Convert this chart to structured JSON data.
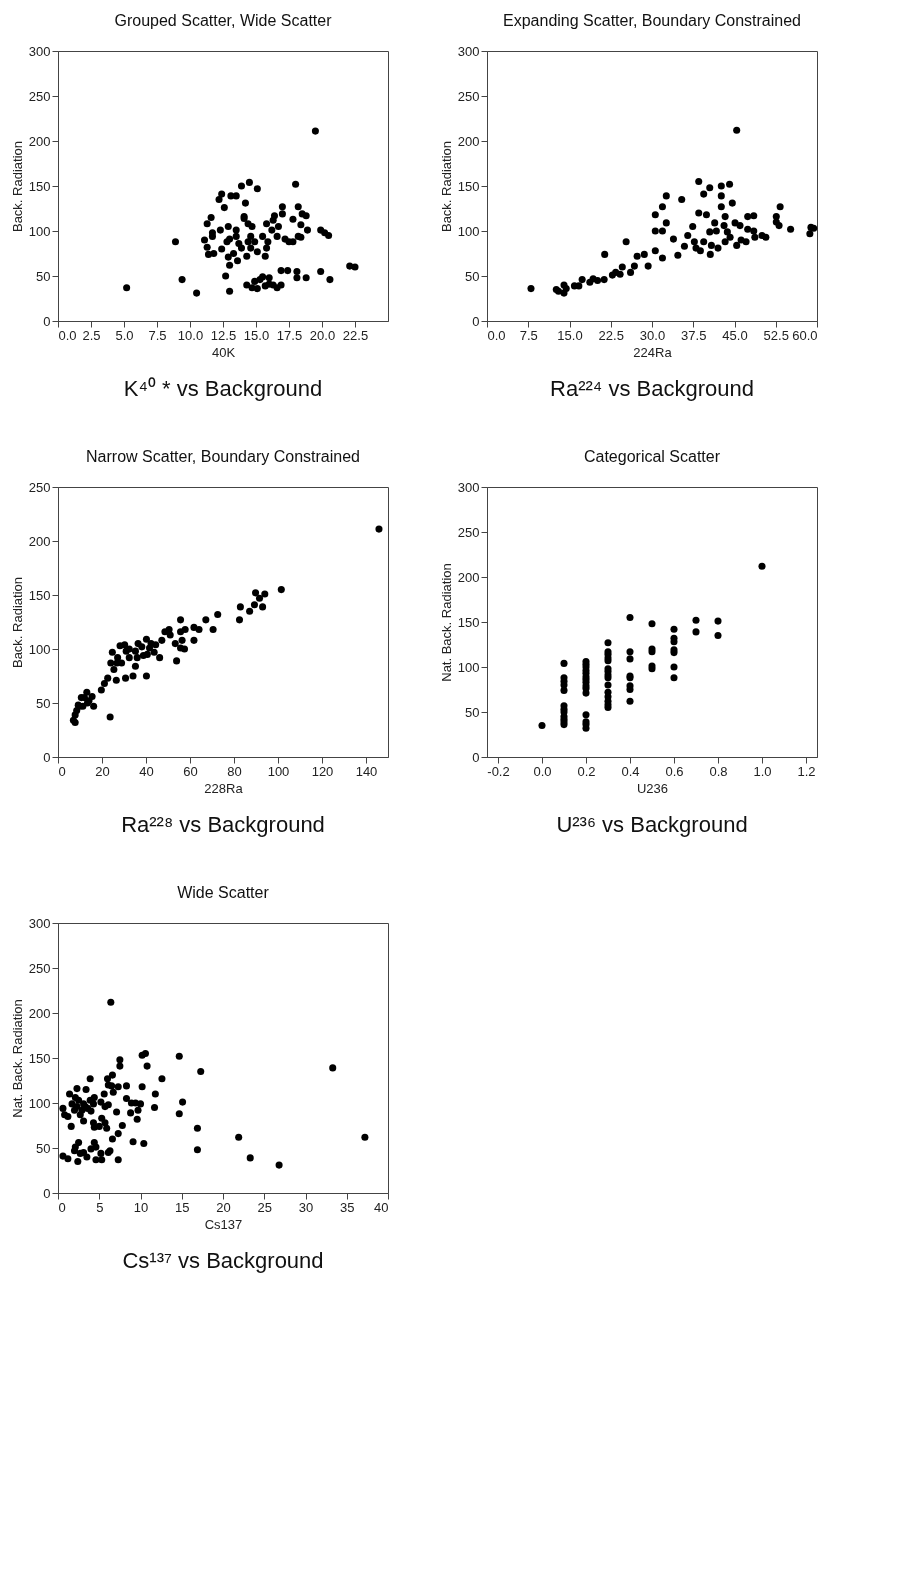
{
  "chart_data": [
    {
      "type": "scatter",
      "title": "Grouped Scatter, Wide Scatter",
      "xlabel": "40K",
      "ylabel": "Back. Radiation",
      "annotations": [
        "K⁴⁰ * vs Background"
      ],
      "color": "#000000",
      "marker": "circle",
      "xlim": [
        0,
        25
      ],
      "xticks": [
        {
          "value": 0,
          "label": "0.0"
        },
        {
          "value": 2.5,
          "label": "2.5"
        },
        {
          "value": 5,
          "label": "5.0"
        },
        {
          "value": 7.5,
          "label": "7.5"
        },
        {
          "value": 10,
          "label": "10.0"
        },
        {
          "value": 12.5,
          "label": "12.5"
        },
        {
          "value": 15,
          "label": "15.0"
        },
        {
          "value": 17.5,
          "label": "17.5"
        },
        {
          "value": 20,
          "label": "20.0"
        },
        {
          "value": 22.5,
          "label": "22.5"
        }
      ],
      "ylim": [
        0,
        300
      ],
      "yticks": [
        0,
        50,
        100,
        150,
        200,
        250,
        300
      ],
      "x": [
        5.2,
        8.9,
        9.4,
        10.5,
        19.5,
        22.1,
        22.5,
        19.9,
        20.6,
        18.8,
        18.1,
        18.1,
        17.4,
        16.9,
        13.0,
        12.7,
        13.0,
        12.9,
        13.6,
        13.3,
        12.4,
        11.4,
        11.8,
        11.1,
        11.3,
        11.7,
        11.7,
        11.3,
        11.6,
        12.3,
        12.2,
        12.4,
        12.6,
        13.1,
        13.5,
        13.9,
        14.5,
        15.1,
        14.2,
        14.1,
        14.1,
        14.4,
        14.7,
        12.9,
        13.5,
        13.0,
        13.5,
        12.8,
        13.7,
        13.9,
        14.3,
        14.4,
        14.6,
        14.9,
        14.6,
        15.1,
        15.5,
        15.8,
        15.7,
        15.9,
        15.8,
        16.2,
        16.3,
        16.4,
        16.7,
        16.6,
        17.0,
        17.0,
        17.2,
        17.5,
        17.8,
        17.8,
        18.0,
        18.2,
        18.4,
        18.2,
        18.4,
        18.5,
        18.8,
        18.9,
        19.9,
        20.2,
        20.5,
        14.3,
        14.7,
        14.9,
        15.1,
        15.3,
        15.5,
        15.7,
        16.0,
        16.0,
        16.3,
        16.6,
        16.9
      ],
      "values": [
        37,
        88,
        46,
        31,
        211,
        61,
        60,
        55,
        46,
        48,
        48,
        55,
        56,
        56,
        33,
        50,
        62,
        71,
        67,
        75,
        80,
        74,
        75,
        90,
        82,
        94,
        98,
        108,
        115,
        101,
        135,
        141,
        126,
        139,
        139,
        150,
        154,
        147,
        131,
        116,
        114,
        108,
        105,
        105,
        101,
        91,
        94,
        88,
        86,
        81,
        72,
        88,
        94,
        88,
        81,
        77,
        94,
        81,
        72,
        88,
        108,
        101,
        112,
        117,
        105,
        94,
        127,
        119,
        91,
        88,
        88,
        113,
        152,
        127,
        107,
        94,
        93,
        119,
        117,
        101,
        101,
        98,
        95,
        40,
        37,
        44,
        36,
        46,
        49,
        39,
        48,
        41,
        40,
        37,
        40
      ]
    },
    {
      "type": "scatter",
      "title": "Expanding Scatter, Boundary Constrained",
      "xlabel": "224Ra",
      "ylabel": "Back. Radiation",
      "annotations": [
        "Ra²²⁴ vs Background"
      ],
      "color": "#000000",
      "marker": "circle",
      "xlim": [
        0,
        60
      ],
      "xticks": [
        {
          "value": 0,
          "label": "0.0"
        },
        {
          "value": 7.5,
          "label": "7.5"
        },
        {
          "value": 15,
          "label": "15.0"
        },
        {
          "value": 22.5,
          "label": "22.5"
        },
        {
          "value": 30,
          "label": "30.0"
        },
        {
          "value": 37.5,
          "label": "37.5"
        },
        {
          "value": 45,
          "label": "45.0"
        },
        {
          "value": 52.5,
          "label": "52.5"
        },
        {
          "value": 60,
          "label": "60.0"
        }
      ],
      "ylim": [
        0,
        300
      ],
      "yticks": [
        0,
        50,
        100,
        150,
        200,
        250,
        300
      ],
      "x": [
        8.0,
        12.6,
        13.0,
        14.0,
        14.4,
        14.0,
        15.9,
        16.7,
        17.3,
        18.7,
        19.3,
        20.1,
        21.3,
        21.4,
        22.8,
        23.4,
        24.2,
        24.6,
        25.3,
        26.1,
        26.8,
        27.3,
        28.6,
        29.3,
        30.6,
        30.6,
        30.6,
        31.9,
        31.9,
        31.9,
        32.6,
        32.6,
        33.9,
        34.7,
        35.4,
        35.9,
        36.5,
        37.4,
        37.7,
        38.0,
        38.5,
        38.5,
        38.8,
        39.4,
        39.4,
        39.9,
        40.5,
        40.5,
        40.6,
        40.8,
        41.4,
        41.7,
        42.0,
        42.6,
        42.6,
        42.6,
        43.1,
        43.3,
        43.3,
        44.1,
        44.6,
        43.7,
        44.2,
        45.4,
        45.1,
        45.4,
        46.0,
        46.2,
        47.1,
        47.4,
        47.4,
        48.5,
        48.5,
        48.7,
        50.0,
        50.7,
        52.6,
        52.6,
        53.1,
        53.3,
        55.2,
        58.7,
        58.9,
        59.4
      ],
      "values": [
        36,
        35,
        33,
        31,
        36,
        40,
        39,
        39,
        46,
        43,
        47,
        45,
        46,
        74,
        51,
        54,
        52,
        60,
        88,
        54,
        61,
        72,
        74,
        61,
        118,
        100,
        78,
        127,
        100,
        70,
        139,
        109,
        91,
        73,
        135,
        83,
        95,
        105,
        88,
        81,
        155,
        120,
        78,
        141,
        88,
        118,
        148,
        99,
        74,
        84,
        109,
        100,
        81,
        150,
        139,
        127,
        106,
        88,
        116,
        152,
        131,
        99,
        93,
        212,
        109,
        84,
        106,
        90,
        88,
        116,
        102,
        117,
        100,
        93,
        95,
        93,
        116,
        110,
        106,
        127,
        102,
        97,
        104,
        103
      ]
    },
    {
      "type": "scatter",
      "title": "Narrow Scatter, Boundary Constrained",
      "xlabel": "228Ra",
      "ylabel": "Back. Radiation",
      "annotations": [
        "Ra²²⁸ vs Background"
      ],
      "color": "#000000",
      "marker": "circle",
      "xlim": [
        0,
        150
      ],
      "xticks": [
        0,
        20,
        40,
        60,
        80,
        100,
        120,
        140
      ],
      "ylim": [
        0,
        250
      ],
      "yticks": [
        0,
        50,
        100,
        150,
        200,
        250
      ],
      "x": [
        145.9,
        101.5,
        89.8,
        94.0,
        91.6,
        89.3,
        93.0,
        82.9,
        87.1,
        82.5,
        72.6,
        67.2,
        70.5,
        61.8,
        64.1,
        61.8,
        55.7,
        57.8,
        55.7,
        56.4,
        55.7,
        57.5,
        53.3,
        53.9,
        50.5,
        48.6,
        51.0,
        47.2,
        46.2,
        44.4,
        42.3,
        41.6,
        40.2,
        40.6,
        40.2,
        38.1,
        36.4,
        36.0,
        35.2,
        34.1,
        32.4,
        31.0,
        30.3,
        28.2,
        27.1,
        26.8,
        28.9,
        30.7,
        26.5,
        24.7,
        25.4,
        24.0,
        22.6,
        21.1,
        19.7,
        23.7,
        16.2,
        15.5,
        14.1,
        13.1,
        12.0,
        10.6,
        9.9,
        9.2,
        8.5,
        7.8,
        7.0,
        7.8,
        11.3,
        13.4,
        32.4,
        38.8,
        43.7,
        35.2
      ],
      "values": [
        211,
        155,
        152,
        151,
        147,
        141,
        139,
        139,
        135,
        127,
        132,
        127,
        118,
        120,
        118,
        108,
        127,
        118,
        116,
        108,
        101,
        100,
        105,
        89,
        118,
        116,
        113,
        108,
        92,
        104,
        105,
        101,
        109,
        95,
        75,
        102,
        105,
        92,
        84,
        75,
        92,
        98,
        104,
        103,
        92,
        87,
        87,
        73,
        71,
        97,
        81,
        87,
        73,
        68,
        62,
        37,
        47,
        56,
        52,
        60,
        55,
        55,
        47,
        48,
        43,
        39,
        34,
        32,
        47,
        50,
        100,
        94,
        97,
        98
      ]
    },
    {
      "type": "scatter",
      "title": "Categorical Scatter",
      "xlabel": "U236",
      "ylabel": "Nat. Back. Radiation",
      "annotations": [
        "U²³⁶ vs Background"
      ],
      "color": "#000000",
      "marker": "circle",
      "xlim": [
        -0.25,
        1.25
      ],
      "xticks": [
        {
          "value": -0.2,
          "label": "-0.2"
        },
        {
          "value": 0,
          "label": "0.0"
        },
        {
          "value": 0.2,
          "label": "0.2"
        },
        {
          "value": 0.4,
          "label": "0.4"
        },
        {
          "value": 0.6,
          "label": "0.6"
        },
        {
          "value": 0.8,
          "label": "0.8"
        },
        {
          "value": 1,
          "label": "1.0"
        },
        {
          "value": 1.2,
          "label": "1.2"
        }
      ],
      "ylim": [
        0,
        300
      ],
      "yticks": [
        0,
        50,
        100,
        150,
        200,
        250,
        300
      ],
      "x": [
        0,
        0.1,
        0.1,
        0.1,
        0.1,
        0.1,
        0.1,
        0.1,
        0.1,
        0.1,
        0.1,
        0.1,
        0.1,
        0.2,
        0.2,
        0.2,
        0.2,
        0.2,
        0.2,
        0.2,
        0.2,
        0.2,
        0.2,
        0.2,
        0.2,
        0.2,
        0.2,
        0.2,
        0.3,
        0.3,
        0.3,
        0.3,
        0.3,
        0.3,
        0.3,
        0.3,
        0.3,
        0.3,
        0.3,
        0.3,
        0.3,
        0.3,
        0.3,
        0.4,
        0.4,
        0.4,
        0.4,
        0.4,
        0.4,
        0.4,
        0.4,
        0.5,
        0.5,
        0.5,
        0.5,
        0.5,
        0.6,
        0.6,
        0.6,
        0.6,
        0.6,
        0.6,
        0.6,
        0.7,
        0.7,
        0.8,
        0.8,
        1.0
      ],
      "values": [
        35,
        104,
        88,
        84,
        80,
        74,
        57,
        53,
        50,
        45,
        42,
        39,
        36,
        106,
        103,
        100,
        96,
        93,
        89,
        86,
        83,
        79,
        76,
        71,
        47,
        39,
        36,
        32,
        127,
        117,
        114,
        110,
        107,
        98,
        95,
        91,
        88,
        80,
        72,
        67,
        62,
        58,
        55,
        155,
        117,
        109,
        90,
        88,
        79,
        75,
        62,
        148,
        120,
        117,
        101,
        98,
        142,
        132,
        128,
        119,
        116,
        100,
        88,
        152,
        139,
        151,
        135,
        212
      ]
    },
    {
      "type": "scatter",
      "title": "Wide Scatter",
      "xlabel": "Cs137",
      "ylabel": "Nat. Back. Radiation",
      "annotations": [
        "Cs¹³⁷ vs Background"
      ],
      "color": "#000000",
      "marker": "circle",
      "xlim": [
        0,
        40
      ],
      "xticks": [
        0,
        5,
        10,
        15,
        20,
        25,
        30,
        35,
        40
      ],
      "ylim": [
        0,
        300
      ],
      "yticks": [
        0,
        50,
        100,
        150,
        200,
        250,
        300
      ],
      "x": [
        6.4,
        14.7,
        10.2,
        10.6,
        10.8,
        7.5,
        7.5,
        17.3,
        33.3,
        12.6,
        3.9,
        6.0,
        6.6,
        6.1,
        6.5,
        7.3,
        8.3,
        10.2,
        2.3,
        3.4,
        1.4,
        5.6,
        11.8,
        6.7,
        15.1,
        14.7,
        11.7,
        0.6,
        0.8,
        1.2,
        1.6,
        1.7,
        2.0,
        2.3,
        2.5,
        2.9,
        3.1,
        2.1,
        2.7,
        3.3,
        3.6,
        4.0,
        4.4,
        4.3,
        3.9,
        5.2,
        5.7,
        6.1,
        3.1,
        4.3,
        4.4,
        5.3,
        5.7,
        5.9,
        5.0,
        7.1,
        7.3,
        6.6,
        7.8,
        8.3,
        8.9,
        9.4,
        8.8,
        9.6,
        9.7,
        10.0,
        9.1,
        10.4,
        16.9,
        16.9,
        21.9,
        23.3,
        26.8,
        37.2,
        0.6,
        1.2,
        2.0,
        2.1,
        2.5,
        2.4,
        2.7,
        3.1,
        3.5,
        4.0,
        4.4,
        4.6,
        4.6,
        5.2,
        5.3,
        6.1,
        6.3,
        7.3
      ],
      "values": [
        212,
        152,
        153,
        155,
        141,
        148,
        141,
        135,
        139,
        127,
        127,
        127,
        131,
        120,
        119,
        118,
        119,
        118,
        116,
        115,
        110,
        110,
        110,
        112,
        101,
        88,
        95,
        94,
        87,
        85,
        74,
        99,
        92,
        96,
        103,
        92,
        99,
        106,
        87,
        96,
        94,
        91,
        106,
        99,
        103,
        101,
        96,
        98,
        80,
        78,
        73,
        83,
        78,
        72,
        74,
        90,
        66,
        60,
        75,
        105,
        100,
        100,
        89,
        82,
        92,
        99,
        57,
        55,
        72,
        48,
        62,
        39,
        31,
        62,
        41,
        38,
        47,
        51,
        56,
        35,
        44,
        45,
        40,
        49,
        56,
        51,
        37,
        44,
        37,
        45,
        47,
        37
      ]
    }
  ]
}
